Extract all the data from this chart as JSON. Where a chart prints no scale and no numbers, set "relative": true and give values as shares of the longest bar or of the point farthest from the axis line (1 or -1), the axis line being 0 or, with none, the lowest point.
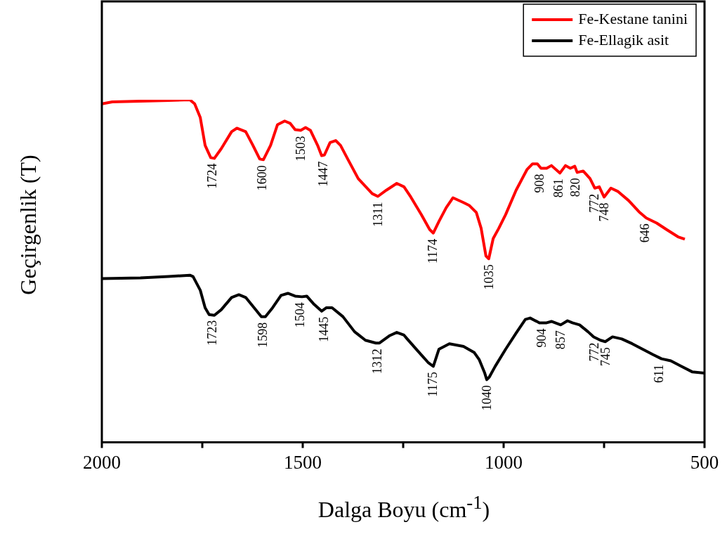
{
  "chart_data": {
    "type": "line",
    "relative": true,
    "xlabel": "Dalga Boyu (cm$^{-1}$)",
    "ylabel": "Geçirgenlik (T)",
    "xlim": [
      2000,
      500
    ],
    "xticks": [
      2000,
      {
        "value": 1750,
        "label": null
      },
      1500,
      {
        "value": 1250,
        "label": null
      },
      1000,
      {
        "value": 750,
        "label": null
      },
      500
    ],
    "grid": false,
    "legend": "top right",
    "marker": "none",
    "tick_labels": "x",
    "series": [
      {
        "name": "Fe-Kestane tanini",
        "color": "#ff0000",
        "x": [
          2000,
          1974,
          1834,
          1781,
          1769,
          1755,
          1743,
          1729,
          1720,
          1703,
          1677,
          1664,
          1642,
          1624,
          1607,
          1598,
          1580,
          1563,
          1545,
          1531,
          1519,
          1505,
          1493,
          1481,
          1463,
          1453,
          1446,
          1432,
          1418,
          1406,
          1388,
          1362,
          1327,
          1313,
          1292,
          1266,
          1248,
          1231,
          1205,
          1184,
          1175,
          1161,
          1143,
          1126,
          1100,
          1086,
          1068,
          1056,
          1044,
          1037,
          1026,
          1012,
          995,
          969,
          942,
          928,
          916,
          907,
          893,
          881,
          860,
          846,
          834,
          823,
          817,
          802,
          785,
          773,
          762,
          750,
          733,
          715,
          689,
          663,
          645,
          619,
          593,
          566,
          549
        ],
        "values": [
          0.988,
          0.994,
          0.998,
          1.0,
          0.988,
          0.948,
          0.867,
          0.831,
          0.829,
          0.857,
          0.907,
          0.917,
          0.907,
          0.867,
          0.827,
          0.825,
          0.867,
          0.927,
          0.938,
          0.931,
          0.913,
          0.911,
          0.919,
          0.911,
          0.867,
          0.837,
          0.839,
          0.875,
          0.881,
          0.867,
          0.827,
          0.77,
          0.726,
          0.718,
          0.736,
          0.756,
          0.746,
          0.716,
          0.665,
          0.621,
          0.611,
          0.645,
          0.685,
          0.714,
          0.7,
          0.692,
          0.671,
          0.625,
          0.544,
          0.536,
          0.595,
          0.625,
          0.665,
          0.736,
          0.796,
          0.813,
          0.813,
          0.8,
          0.8,
          0.808,
          0.786,
          0.808,
          0.8,
          0.806,
          0.788,
          0.792,
          0.77,
          0.742,
          0.746,
          0.716,
          0.742,
          0.732,
          0.706,
          0.673,
          0.655,
          0.64,
          0.62,
          0.6,
          0.593
        ]
      },
      {
        "name": "Fe-Ellagik asit",
        "color": "#000000",
        "x": [
          2000,
          1904,
          1834,
          1781,
          1773,
          1755,
          1743,
          1733,
          1720,
          1703,
          1677,
          1659,
          1642,
          1621,
          1603,
          1593,
          1575,
          1554,
          1537,
          1519,
          1502,
          1490,
          1472,
          1453,
          1441,
          1427,
          1400,
          1371,
          1344,
          1318,
          1309,
          1283,
          1266,
          1248,
          1240,
          1213,
          1187,
          1175,
          1161,
          1135,
          1100,
          1073,
          1061,
          1047,
          1042,
          1036,
          1021,
          995,
          969,
          946,
          934,
          911,
          893,
          881,
          858,
          841,
          829,
          811,
          790,
          776,
          759,
          747,
          729,
          706,
          680,
          654,
          628,
          607,
          584,
          558,
          531,
          500
        ],
        "values": [
          0.478,
          0.48,
          0.484,
          0.488,
          0.484,
          0.444,
          0.393,
          0.373,
          0.371,
          0.387,
          0.423,
          0.431,
          0.423,
          0.393,
          0.367,
          0.367,
          0.393,
          0.429,
          0.435,
          0.427,
          0.425,
          0.427,
          0.403,
          0.383,
          0.393,
          0.393,
          0.367,
          0.323,
          0.298,
          0.29,
          0.29,
          0.312,
          0.321,
          0.313,
          0.302,
          0.266,
          0.232,
          0.222,
          0.272,
          0.288,
          0.28,
          0.262,
          0.242,
          0.202,
          0.183,
          0.19,
          0.222,
          0.272,
          0.319,
          0.359,
          0.363,
          0.349,
          0.349,
          0.353,
          0.343,
          0.355,
          0.349,
          0.343,
          0.323,
          0.308,
          0.298,
          0.294,
          0.308,
          0.302,
          0.288,
          0.272,
          0.256,
          0.244,
          0.238,
          0.222,
          0.206,
          0.202
        ]
      }
    ],
    "annotations": [
      {
        "text": "1724",
        "x": 1724,
        "y": 0.831
      },
      {
        "text": "1600",
        "x": 1600,
        "y": 0.825
      },
      {
        "text": "1503",
        "x": 1503,
        "y": 0.911
      },
      {
        "text": "1447",
        "x": 1447,
        "y": 0.837
      },
      {
        "text": "1311",
        "x": 1311,
        "y": 0.718
      },
      {
        "text": "1174",
        "x": 1174,
        "y": 0.611
      },
      {
        "text": "1035",
        "x": 1035,
        "y": 0.536
      },
      {
        "text": "908",
        "x": 908,
        "y": 0.8
      },
      {
        "text": "861",
        "x": 861,
        "y": 0.786
      },
      {
        "text": "820",
        "x": 820,
        "y": 0.788
      },
      {
        "text": "772",
        "x": 772,
        "y": 0.742
      },
      {
        "text": "748",
        "x": 748,
        "y": 0.716
      },
      {
        "text": "646",
        "x": 646,
        "y": 0.655
      },
      {
        "text": "1723",
        "x": 1723,
        "y": 0.373
      },
      {
        "text": "1598",
        "x": 1598,
        "y": 0.367
      },
      {
        "text": "1504",
        "x": 1504,
        "y": 0.425
      },
      {
        "text": "1445",
        "x": 1445,
        "y": 0.383
      },
      {
        "text": "1312",
        "x": 1312,
        "y": 0.29
      },
      {
        "text": "1175",
        "x": 1175,
        "y": 0.222
      },
      {
        "text": "1040",
        "x": 1040,
        "y": 0.183
      },
      {
        "text": "904",
        "x": 904,
        "y": 0.349
      },
      {
        "text": "857",
        "x": 857,
        "y": 0.343
      },
      {
        "text": "772",
        "x": 772,
        "y": 0.308
      },
      {
        "text": "745",
        "x": 745,
        "y": 0.294
      },
      {
        "text": "611",
        "x": 611,
        "y": 0.244
      }
    ]
  }
}
